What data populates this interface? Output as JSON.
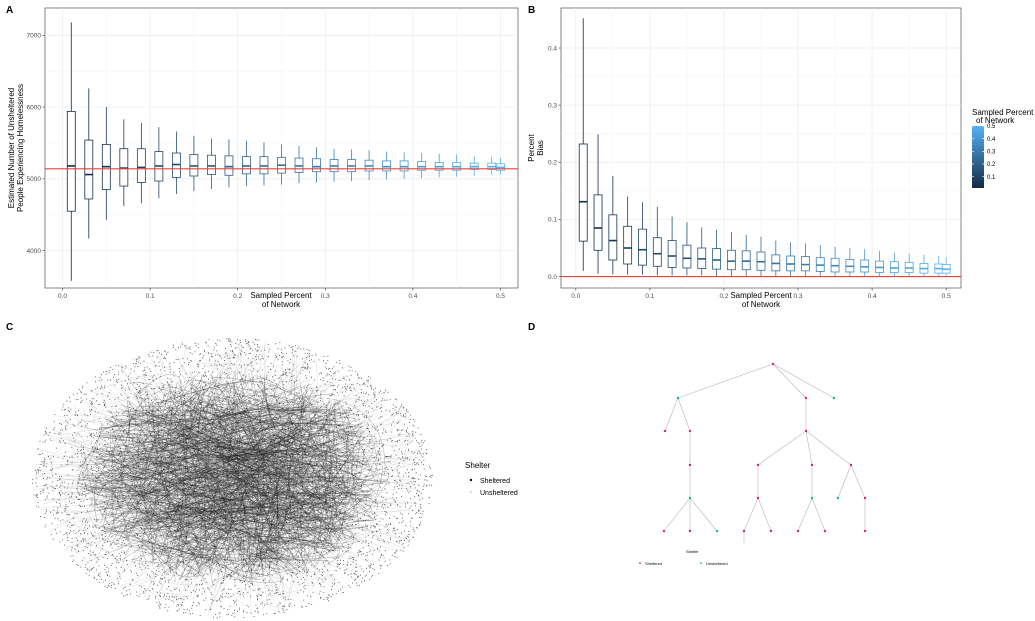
{
  "panels": {
    "a_label": "A",
    "b_label": "B",
    "c_label": "C",
    "d_label": "D"
  },
  "colors": {
    "reference_line": "#e8413a",
    "box_low": "#132b43",
    "box_high": "#56b1f7",
    "grid": "#ebebeb",
    "sheltered": "#e0294a",
    "unsheltered": "#14b8a0",
    "network_node": "#111111",
    "tree_edge": "#b5b5b5"
  },
  "chart_data": [
    {
      "panel": "A",
      "type": "box",
      "title": "",
      "xlabel": "Sampled Percent\nof Network",
      "ylabel": "Estimated Number of Unsheltered\nPeople Experiencing Homelessness",
      "xlim": [
        -0.02,
        0.52
      ],
      "ylim": [
        3480,
        7380
      ],
      "xticks": [
        0.0,
        0.1,
        0.2,
        0.3,
        0.4,
        0.5
      ],
      "xtick_labels": [
        "0.0",
        "0.1",
        "0.2",
        "0.3",
        "0.4",
        "0.5"
      ],
      "yticks": [
        4000,
        5000,
        6000,
        7000
      ],
      "ytick_labels": [
        "4000",
        "5000",
        "6000",
        "7000"
      ],
      "reference_line_y": 5140,
      "grid": true,
      "boxes": [
        {
          "x": 0.01,
          "min": 3580,
          "q1": 4550,
          "median": 5180,
          "q3": 5940,
          "max": 7180
        },
        {
          "x": 0.03,
          "min": 4170,
          "q1": 4720,
          "median": 5060,
          "q3": 5540,
          "max": 6260
        },
        {
          "x": 0.05,
          "min": 4430,
          "q1": 4850,
          "median": 5170,
          "q3": 5480,
          "max": 6000
        },
        {
          "x": 0.07,
          "min": 4620,
          "q1": 4900,
          "median": 5150,
          "q3": 5420,
          "max": 5830
        },
        {
          "x": 0.09,
          "min": 4660,
          "q1": 4950,
          "median": 5160,
          "q3": 5420,
          "max": 5780
        },
        {
          "x": 0.11,
          "min": 4730,
          "q1": 4970,
          "median": 5180,
          "q3": 5380,
          "max": 5720
        },
        {
          "x": 0.13,
          "min": 4790,
          "q1": 5020,
          "median": 5200,
          "q3": 5360,
          "max": 5660
        },
        {
          "x": 0.15,
          "min": 4830,
          "q1": 5040,
          "median": 5180,
          "q3": 5340,
          "max": 5600
        },
        {
          "x": 0.17,
          "min": 4860,
          "q1": 5060,
          "median": 5180,
          "q3": 5330,
          "max": 5560
        },
        {
          "x": 0.19,
          "min": 4880,
          "q1": 5050,
          "median": 5170,
          "q3": 5320,
          "max": 5550
        },
        {
          "x": 0.21,
          "min": 4900,
          "q1": 5070,
          "median": 5180,
          "q3": 5310,
          "max": 5530
        },
        {
          "x": 0.23,
          "min": 4910,
          "q1": 5070,
          "median": 5180,
          "q3": 5310,
          "max": 5510
        },
        {
          "x": 0.25,
          "min": 4920,
          "q1": 5080,
          "median": 5190,
          "q3": 5300,
          "max": 5480
        },
        {
          "x": 0.27,
          "min": 4940,
          "q1": 5090,
          "median": 5180,
          "q3": 5290,
          "max": 5460
        },
        {
          "x": 0.29,
          "min": 4950,
          "q1": 5100,
          "median": 5170,
          "q3": 5280,
          "max": 5440
        },
        {
          "x": 0.31,
          "min": 4960,
          "q1": 5100,
          "median": 5180,
          "q3": 5270,
          "max": 5420
        },
        {
          "x": 0.33,
          "min": 4970,
          "q1": 5100,
          "median": 5180,
          "q3": 5270,
          "max": 5410
        },
        {
          "x": 0.35,
          "min": 4980,
          "q1": 5110,
          "median": 5180,
          "q3": 5260,
          "max": 5400
        },
        {
          "x": 0.37,
          "min": 4990,
          "q1": 5110,
          "median": 5170,
          "q3": 5250,
          "max": 5380
        },
        {
          "x": 0.39,
          "min": 5000,
          "q1": 5110,
          "median": 5170,
          "q3": 5250,
          "max": 5370
        },
        {
          "x": 0.41,
          "min": 5010,
          "q1": 5120,
          "median": 5170,
          "q3": 5240,
          "max": 5360
        },
        {
          "x": 0.43,
          "min": 5020,
          "q1": 5120,
          "median": 5170,
          "q3": 5230,
          "max": 5350
        },
        {
          "x": 0.45,
          "min": 5030,
          "q1": 5120,
          "median": 5170,
          "q3": 5230,
          "max": 5340
        },
        {
          "x": 0.47,
          "min": 5040,
          "q1": 5130,
          "median": 5170,
          "q3": 5220,
          "max": 5320
        },
        {
          "x": 0.49,
          "min": 5050,
          "q1": 5130,
          "median": 5170,
          "q3": 5220,
          "max": 5310
        },
        {
          "x": 0.5,
          "min": 5060,
          "q1": 5120,
          "median": 5160,
          "q3": 5210,
          "max": 5290
        }
      ]
    },
    {
      "panel": "B",
      "type": "box",
      "title": "",
      "xlabel": "Sampled Percent\nof Network",
      "ylabel": "Percent\nBias",
      "xlim": [
        -0.02,
        0.52
      ],
      "ylim": [
        -0.02,
        0.47
      ],
      "xticks": [
        0.0,
        0.1,
        0.2,
        0.3,
        0.4,
        0.5
      ],
      "xtick_labels": [
        "0.0",
        "0.1",
        "0.2",
        "0.3",
        "0.4",
        "0.5"
      ],
      "yticks": [
        0.0,
        0.1,
        0.2,
        0.3,
        0.4
      ],
      "ytick_labels": [
        "0.0",
        "0.1",
        "0.2",
        "0.3",
        "0.4"
      ],
      "reference_line_y": 0.0,
      "grid": true,
      "boxes": [
        {
          "x": 0.01,
          "min": 0.01,
          "q1": 0.062,
          "median": 0.131,
          "q3": 0.232,
          "max": 0.452
        },
        {
          "x": 0.03,
          "min": 0.005,
          "q1": 0.046,
          "median": 0.085,
          "q3": 0.143,
          "max": 0.249
        },
        {
          "x": 0.05,
          "min": 0.004,
          "q1": 0.029,
          "median": 0.063,
          "q3": 0.108,
          "max": 0.176
        },
        {
          "x": 0.07,
          "min": 0.003,
          "q1": 0.022,
          "median": 0.05,
          "q3": 0.088,
          "max": 0.14
        },
        {
          "x": 0.09,
          "min": 0.003,
          "q1": 0.02,
          "median": 0.047,
          "q3": 0.083,
          "max": 0.13
        },
        {
          "x": 0.11,
          "min": 0.002,
          "q1": 0.018,
          "median": 0.04,
          "q3": 0.068,
          "max": 0.122
        },
        {
          "x": 0.13,
          "min": 0.002,
          "q1": 0.016,
          "median": 0.036,
          "q3": 0.063,
          "max": 0.105
        },
        {
          "x": 0.15,
          "min": 0.002,
          "q1": 0.015,
          "median": 0.032,
          "q3": 0.055,
          "max": 0.095
        },
        {
          "x": 0.17,
          "min": 0.002,
          "q1": 0.014,
          "median": 0.031,
          "q3": 0.05,
          "max": 0.086
        },
        {
          "x": 0.19,
          "min": 0.001,
          "q1": 0.013,
          "median": 0.029,
          "q3": 0.049,
          "max": 0.082
        },
        {
          "x": 0.21,
          "min": 0.001,
          "q1": 0.012,
          "median": 0.027,
          "q3": 0.046,
          "max": 0.078
        },
        {
          "x": 0.23,
          "min": 0.001,
          "q1": 0.012,
          "median": 0.027,
          "q3": 0.045,
          "max": 0.073
        },
        {
          "x": 0.25,
          "min": 0.001,
          "q1": 0.011,
          "median": 0.026,
          "q3": 0.043,
          "max": 0.07
        },
        {
          "x": 0.27,
          "min": 0.001,
          "q1": 0.01,
          "median": 0.023,
          "q3": 0.038,
          "max": 0.063
        },
        {
          "x": 0.29,
          "min": 0.001,
          "q1": 0.01,
          "median": 0.022,
          "q3": 0.036,
          "max": 0.06
        },
        {
          "x": 0.31,
          "min": 0.001,
          "q1": 0.01,
          "median": 0.021,
          "q3": 0.035,
          "max": 0.058
        },
        {
          "x": 0.33,
          "min": 0.001,
          "q1": 0.009,
          "median": 0.02,
          "q3": 0.033,
          "max": 0.055
        },
        {
          "x": 0.35,
          "min": 0.001,
          "q1": 0.008,
          "median": 0.019,
          "q3": 0.032,
          "max": 0.052
        },
        {
          "x": 0.37,
          "min": 0.001,
          "q1": 0.008,
          "median": 0.018,
          "q3": 0.03,
          "max": 0.05
        },
        {
          "x": 0.39,
          "min": 0.001,
          "q1": 0.008,
          "median": 0.017,
          "q3": 0.029,
          "max": 0.048
        },
        {
          "x": 0.41,
          "min": 0.001,
          "q1": 0.007,
          "median": 0.016,
          "q3": 0.027,
          "max": 0.045
        },
        {
          "x": 0.43,
          "min": 0.001,
          "q1": 0.007,
          "median": 0.015,
          "q3": 0.026,
          "max": 0.042
        },
        {
          "x": 0.45,
          "min": 0.001,
          "q1": 0.007,
          "median": 0.015,
          "q3": 0.025,
          "max": 0.04
        },
        {
          "x": 0.47,
          "min": 0.001,
          "q1": 0.006,
          "median": 0.014,
          "q3": 0.023,
          "max": 0.038
        },
        {
          "x": 0.49,
          "min": 0.001,
          "q1": 0.006,
          "median": 0.014,
          "q3": 0.022,
          "max": 0.036
        },
        {
          "x": 0.5,
          "min": 0.001,
          "q1": 0.006,
          "median": 0.013,
          "q3": 0.021,
          "max": 0.034
        }
      ],
      "legend": {
        "title": "Sampled Percent\nof Network",
        "ticks": [
          "0.1",
          "0.2",
          "0.3",
          "0.4",
          "0.5"
        ],
        "tick_values": [
          0.1,
          0.2,
          0.3,
          0.4,
          0.5
        ],
        "range": [
          0.01,
          0.5
        ]
      }
    },
    {
      "panel": "C",
      "type": "network",
      "legend": {
        "title": "Shelter",
        "items": [
          "Sheltered",
          "Unsheltered"
        ]
      }
    },
    {
      "panel": "D",
      "type": "tree",
      "legend": {
        "title": "Shelter",
        "items": [
          "Sheltered",
          "Unsheltered"
        ]
      }
    }
  ]
}
